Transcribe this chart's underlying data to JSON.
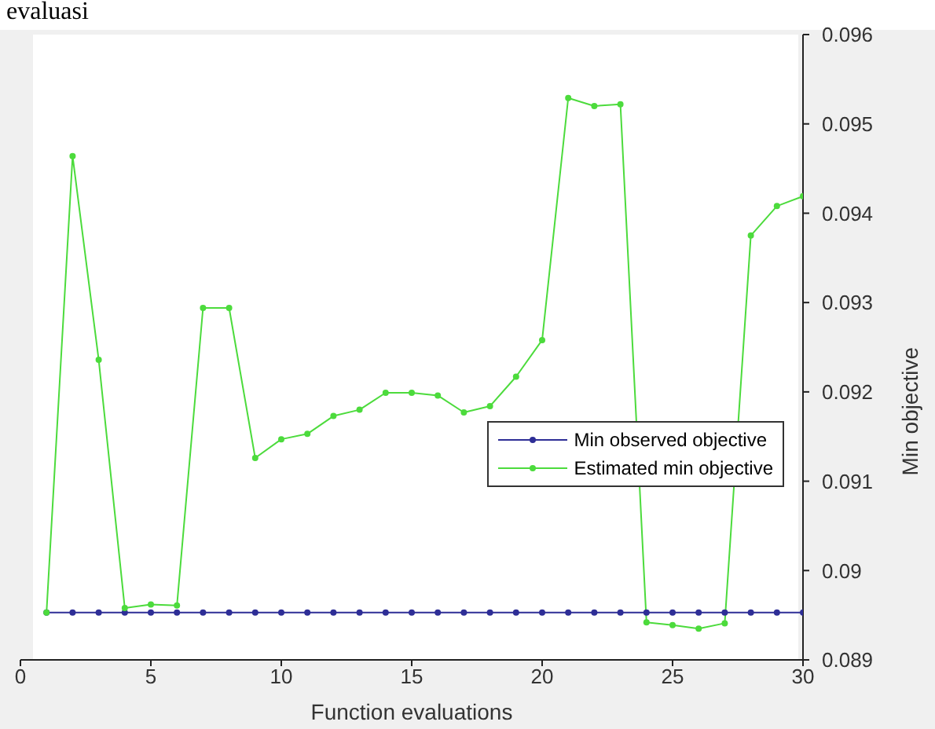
{
  "chart_data": {
    "type": "line",
    "title": "evaluasi",
    "xlabel": "Function evaluations",
    "ylabel": "Min objective",
    "x": [
      1,
      2,
      3,
      4,
      5,
      6,
      7,
      8,
      9,
      10,
      11,
      12,
      13,
      14,
      15,
      16,
      17,
      18,
      19,
      20,
      21,
      22,
      23,
      24,
      25,
      26,
      27,
      28,
      29,
      30
    ],
    "series": [
      {
        "name": "Min observed objective",
        "color": "#2e2e96",
        "values": [
          0.08953,
          0.08953,
          0.08953,
          0.08953,
          0.08953,
          0.08953,
          0.08953,
          0.08953,
          0.08953,
          0.08953,
          0.08953,
          0.08953,
          0.08953,
          0.08953,
          0.08953,
          0.08953,
          0.08953,
          0.08953,
          0.08953,
          0.08953,
          0.08953,
          0.08953,
          0.08953,
          0.08953,
          0.08953,
          0.08953,
          0.08953,
          0.08953,
          0.08953,
          0.08953
        ]
      },
      {
        "name": "Estimated min objective",
        "color": "#4cdb3c",
        "values": [
          0.08953,
          0.09464,
          0.09236,
          0.08958,
          0.08962,
          0.08961,
          0.09294,
          0.09294,
          0.09126,
          0.09147,
          0.09153,
          0.09173,
          0.0918,
          0.09199,
          0.09199,
          0.09196,
          0.09177,
          0.09184,
          0.09217,
          0.09258,
          0.09529,
          0.0952,
          0.09522,
          0.08942,
          0.08939,
          0.08935,
          0.08941,
          0.09375,
          0.09408,
          0.09419
        ]
      }
    ],
    "xlim": [
      0,
      30
    ],
    "xticks": [
      0,
      5,
      10,
      15,
      20,
      25,
      30
    ],
    "ylim": [
      0.089,
      0.096
    ],
    "yticks": [
      0.089,
      0.09,
      0.091,
      0.092,
      0.093,
      0.094,
      0.095,
      0.096
    ],
    "grid": false,
    "legend": "right",
    "marker": "circle",
    "line_style": "solid"
  }
}
